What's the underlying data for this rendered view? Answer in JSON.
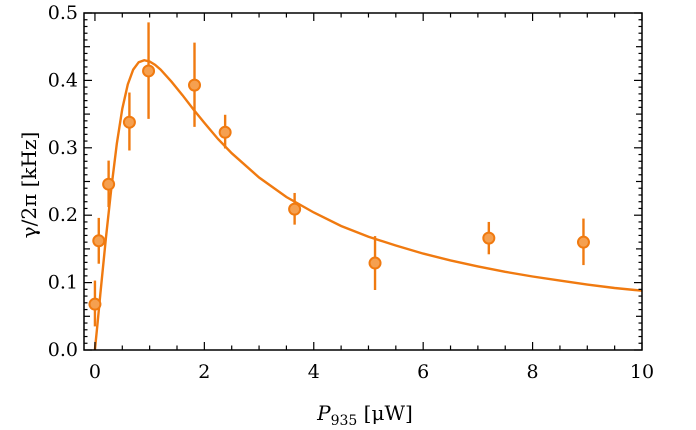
{
  "chart_data": {
    "type": "scatter",
    "xlabel": {
      "main": "P",
      "sub": "935",
      "unit": " [μW]"
    },
    "ylabel": "γ/2π [kHz]",
    "xlim": [
      -0.2,
      10
    ],
    "ylim": [
      0,
      0.5
    ],
    "xticks": [
      0,
      2,
      4,
      6,
      8,
      10
    ],
    "xtick_labels": [
      "0",
      "2",
      "4",
      "6",
      "8",
      "10"
    ],
    "yticks": [
      0,
      0.1,
      0.2,
      0.3,
      0.4,
      0.5
    ],
    "ytick_labels": [
      "0.0",
      "0.1",
      "0.2",
      "0.3",
      "0.4",
      "0.5"
    ],
    "grid": false,
    "color": "#f07a10",
    "marker_fill": "#f5a050",
    "points": [
      {
        "x": 0.0,
        "y": 0.068,
        "yerr_low": 0.035,
        "yerr_high": 0.103
      },
      {
        "x": 0.07,
        "y": 0.162,
        "yerr_low": 0.128,
        "yerr_high": 0.196
      },
      {
        "x": 0.25,
        "y": 0.246,
        "yerr_low": 0.212,
        "yerr_high": 0.281
      },
      {
        "x": 0.63,
        "y": 0.338,
        "yerr_low": 0.296,
        "yerr_high": 0.382
      },
      {
        "x": 0.98,
        "y": 0.414,
        "yerr_low": 0.343,
        "yerr_high": 0.486
      },
      {
        "x": 1.82,
        "y": 0.393,
        "yerr_low": 0.331,
        "yerr_high": 0.456
      },
      {
        "x": 2.38,
        "y": 0.323,
        "yerr_low": 0.299,
        "yerr_high": 0.349
      },
      {
        "x": 3.65,
        "y": 0.209,
        "yerr_low": 0.186,
        "yerr_high": 0.233
      },
      {
        "x": 5.12,
        "y": 0.129,
        "yerr_low": 0.089,
        "yerr_high": 0.169
      },
      {
        "x": 7.2,
        "y": 0.166,
        "yerr_low": 0.142,
        "yerr_high": 0.19
      },
      {
        "x": 8.93,
        "y": 0.16,
        "yerr_low": 0.126,
        "yerr_high": 0.195
      }
    ],
    "fit_curve": {
      "x": [
        0,
        0.05,
        0.1,
        0.2,
        0.3,
        0.4,
        0.5,
        0.6,
        0.7,
        0.8,
        0.9,
        1.0,
        1.1,
        1.2,
        1.4,
        1.6,
        1.8,
        2.0,
        2.25,
        2.5,
        3.0,
        3.5,
        4.0,
        4.5,
        5.0,
        5.5,
        6.0,
        6.5,
        7.0,
        7.5,
        8.0,
        8.5,
        9.0,
        9.5,
        10.0
      ],
      "y": [
        0.0,
        0.042,
        0.084,
        0.166,
        0.241,
        0.306,
        0.358,
        0.394,
        0.416,
        0.427,
        0.43,
        0.428,
        0.423,
        0.416,
        0.398,
        0.378,
        0.357,
        0.337,
        0.313,
        0.292,
        0.256,
        0.227,
        0.204,
        0.184,
        0.168,
        0.155,
        0.143,
        0.133,
        0.124,
        0.116,
        0.109,
        0.103,
        0.097,
        0.092,
        0.088
      ]
    }
  }
}
